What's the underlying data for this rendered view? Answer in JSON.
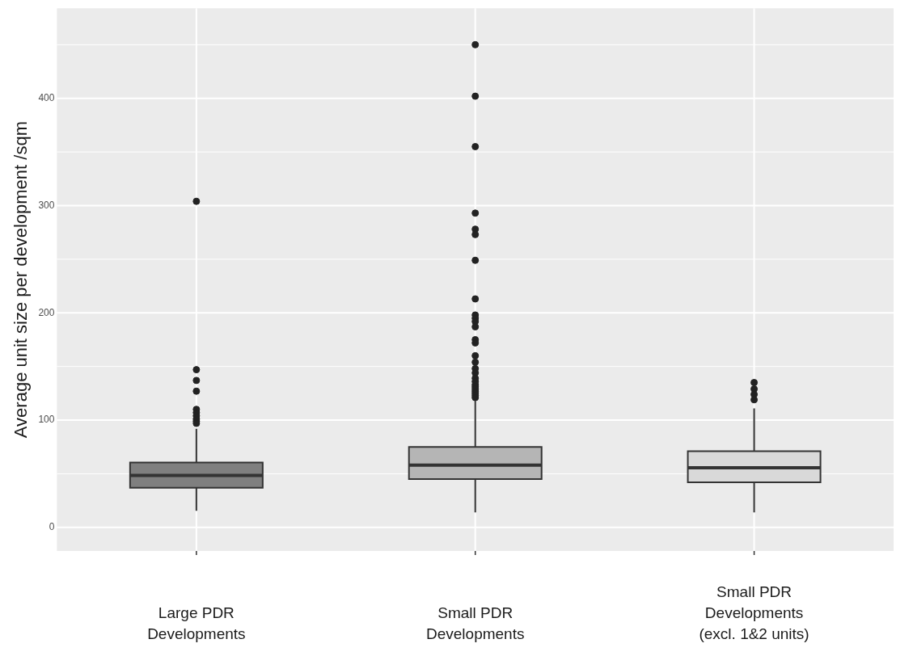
{
  "chart_data": {
    "type": "box",
    "ylabel": "Average unit size per development /sqm",
    "categories": [
      "Large PDR Developments",
      "Small PDR Developments",
      "Small PDR Developments (excl. 1&2 units)"
    ],
    "colors": [
      "#7f7f7f",
      "#b5b5b5",
      "#d9d9d9"
    ],
    "boxes": [
      {
        "low": 15.5,
        "q1": 37,
        "median": 48.5,
        "q3": 60.5,
        "high": 92,
        "outliers": [
          304,
          147,
          137,
          127,
          110,
          107,
          104,
          101,
          99,
          97
        ]
      },
      {
        "low": 14,
        "q1": 45,
        "median": 58,
        "q3": 75,
        "high": 118,
        "outliers": [
          450,
          402,
          355,
          293,
          278,
          273,
          249,
          213,
          198,
          195,
          192,
          187,
          175,
          172,
          160,
          154,
          148,
          144,
          139,
          136,
          133,
          131,
          129,
          127,
          125,
          123,
          121
        ]
      },
      {
        "low": 14,
        "q1": 42,
        "median": 55.5,
        "q3": 71,
        "high": 111,
        "outliers": [
          135,
          129,
          124,
          119
        ]
      }
    ],
    "ylim": [
      -22,
      484
    ],
    "yticks": [
      0,
      {
        "value": 50,
        "label": null
      },
      100,
      {
        "value": 150,
        "label": null
      },
      200,
      {
        "value": 250,
        "label": null
      },
      300,
      {
        "value": 350,
        "label": null
      },
      400,
      {
        "value": 450,
        "label": null
      }
    ],
    "grid": true
  }
}
